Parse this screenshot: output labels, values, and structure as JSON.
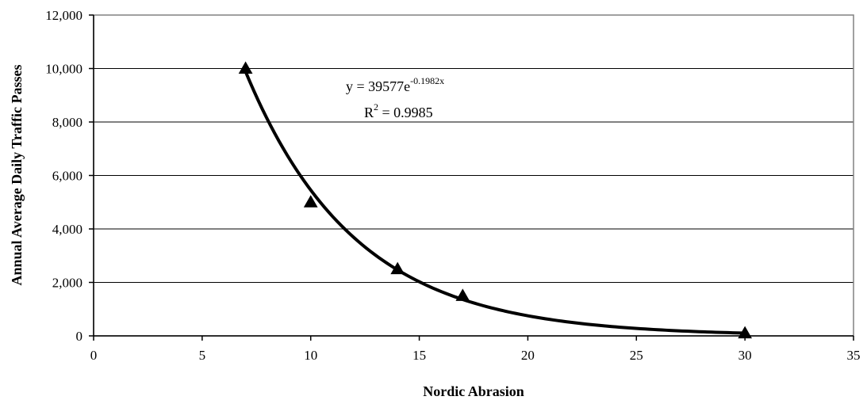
{
  "chart_data": {
    "type": "scatter",
    "xlabel": "Nordic Abrasion",
    "ylabel": "Annual Average Daily Traffic Passes",
    "xlim": [
      0,
      35
    ],
    "ylim": [
      0,
      12000
    ],
    "x_ticks": [
      0,
      5,
      10,
      15,
      20,
      25,
      30,
      35
    ],
    "y_ticks": [
      0,
      2000,
      4000,
      6000,
      8000,
      10000,
      12000
    ],
    "x_tick_labels": [
      "0",
      "5",
      "10",
      "15",
      "20",
      "25",
      "30",
      "35"
    ],
    "y_tick_labels": [
      "0",
      "2,000",
      "4,000",
      "6,000",
      "8,000",
      "10,000",
      "12,000"
    ],
    "grid": "horizontal",
    "legend": "none",
    "marker": "triangle",
    "series": [
      {
        "x": [
          7,
          10,
          14,
          17,
          30
        ],
        "y": [
          10000,
          5000,
          2500,
          1500,
          100
        ]
      }
    ],
    "trendline": {
      "type": "exponential",
      "a": 39577,
      "b": -0.1982,
      "x_range": [
        7,
        30
      ],
      "equation_base": "y = 39577e",
      "equation_exponent": "-0.1982x",
      "r2_label_base": "R",
      "r2_label_exp": "2",
      "r2_label_rest": " = 0.9985"
    }
  }
}
